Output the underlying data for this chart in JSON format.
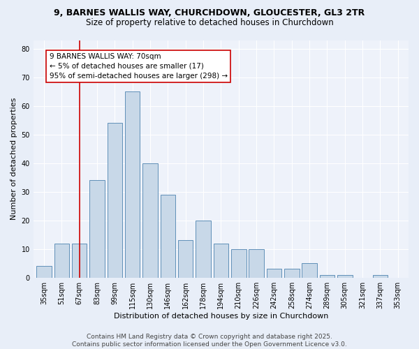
{
  "title_line1": "9, BARNES WALLIS WAY, CHURCHDOWN, GLOUCESTER, GL3 2TR",
  "title_line2": "Size of property relative to detached houses in Churchdown",
  "xlabel": "Distribution of detached houses by size in Churchdown",
  "ylabel": "Number of detached properties",
  "categories": [
    "35sqm",
    "51sqm",
    "67sqm",
    "83sqm",
    "99sqm",
    "115sqm",
    "130sqm",
    "146sqm",
    "162sqm",
    "178sqm",
    "194sqm",
    "210sqm",
    "226sqm",
    "242sqm",
    "258sqm",
    "274sqm",
    "289sqm",
    "305sqm",
    "321sqm",
    "337sqm",
    "353sqm"
  ],
  "values": [
    4,
    12,
    12,
    34,
    54,
    65,
    40,
    29,
    13,
    20,
    12,
    10,
    10,
    3,
    3,
    5,
    1,
    1,
    0,
    1,
    0
  ],
  "bar_color": "#c8d8e8",
  "bar_edge_color": "#6090b8",
  "vline_x": 2.0,
  "vline_color": "#cc0000",
  "annotation_text": "9 BARNES WALLIS WAY: 70sqm\n← 5% of detached houses are smaller (17)\n95% of semi-detached houses are larger (298) →",
  "annotation_box_color": "#ffffff",
  "annotation_box_edge": "#cc0000",
  "ylim": [
    0,
    83
  ],
  "yticks": [
    0,
    10,
    20,
    30,
    40,
    50,
    60,
    70,
    80
  ],
  "bg_color": "#e8eef8",
  "plot_bg_color": "#eef2fa",
  "grid_color": "#ffffff",
  "footer_text": "Contains HM Land Registry data © Crown copyright and database right 2025.\nContains public sector information licensed under the Open Government Licence v3.0.",
  "title_fontsize": 9,
  "subtitle_fontsize": 8.5,
  "axis_label_fontsize": 8,
  "tick_fontsize": 7,
  "footer_fontsize": 6.5,
  "annotation_fontsize": 7.5
}
